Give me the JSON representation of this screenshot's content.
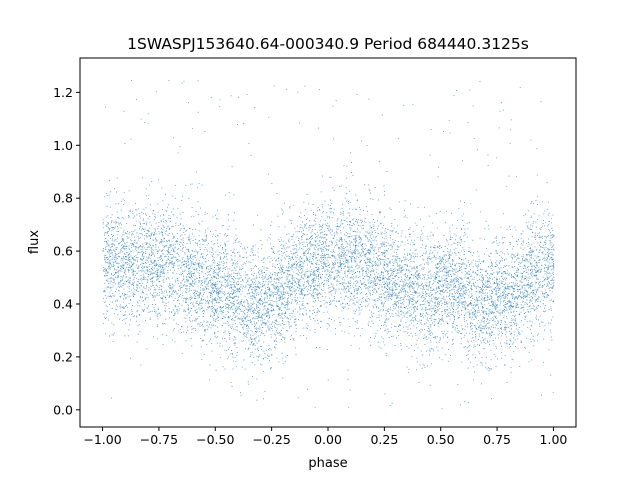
{
  "chart_data": {
    "type": "scatter",
    "title": "1SWASPJ153640.64-000340.9 Period 684440.3125s",
    "xlabel": "phase",
    "ylabel": "flux",
    "xlim": [
      -1.1,
      1.1
    ],
    "ylim": [
      -0.065,
      1.33
    ],
    "x_ticks": [
      -1.0,
      -0.75,
      -0.5,
      -0.25,
      0.0,
      0.25,
      0.5,
      0.75,
      1.0
    ],
    "x_tick_labels": [
      "−1.00",
      "−0.75",
      "−0.50",
      "−0.25",
      "0.00",
      "0.25",
      "0.50",
      "0.75",
      "1.00"
    ],
    "y_ticks": [
      0.0,
      0.2,
      0.4,
      0.6,
      0.8,
      1.0,
      1.2
    ],
    "y_tick_labels": [
      "0.0",
      "0.2",
      "0.4",
      "0.6",
      "0.8",
      "1.0",
      "1.2"
    ],
    "grid": false,
    "marker_color": "#1f77b4",
    "phase_range": [
      -1.0,
      1.0
    ],
    "flux_range": [
      0.0,
      1.27
    ],
    "mean_flux_profile": {
      "phase": [
        -1.0,
        -0.92,
        -0.85,
        -0.78,
        -0.72,
        -0.65,
        -0.58,
        -0.5,
        -0.42,
        -0.34,
        -0.25,
        -0.2,
        -0.12,
        -0.05,
        0.0,
        0.08,
        0.15,
        0.22,
        0.28,
        0.35,
        0.42,
        0.5,
        0.58,
        0.66,
        0.72,
        0.8,
        0.88,
        0.95,
        1.0
      ],
      "flux": [
        0.55,
        0.56,
        0.55,
        0.56,
        0.55,
        0.53,
        0.5,
        0.47,
        0.44,
        0.39,
        0.42,
        0.47,
        0.52,
        0.55,
        0.56,
        0.56,
        0.55,
        0.53,
        0.5,
        0.47,
        0.44,
        0.46,
        0.48,
        0.39,
        0.42,
        0.45,
        0.5,
        0.54,
        0.55
      ]
    }
  }
}
